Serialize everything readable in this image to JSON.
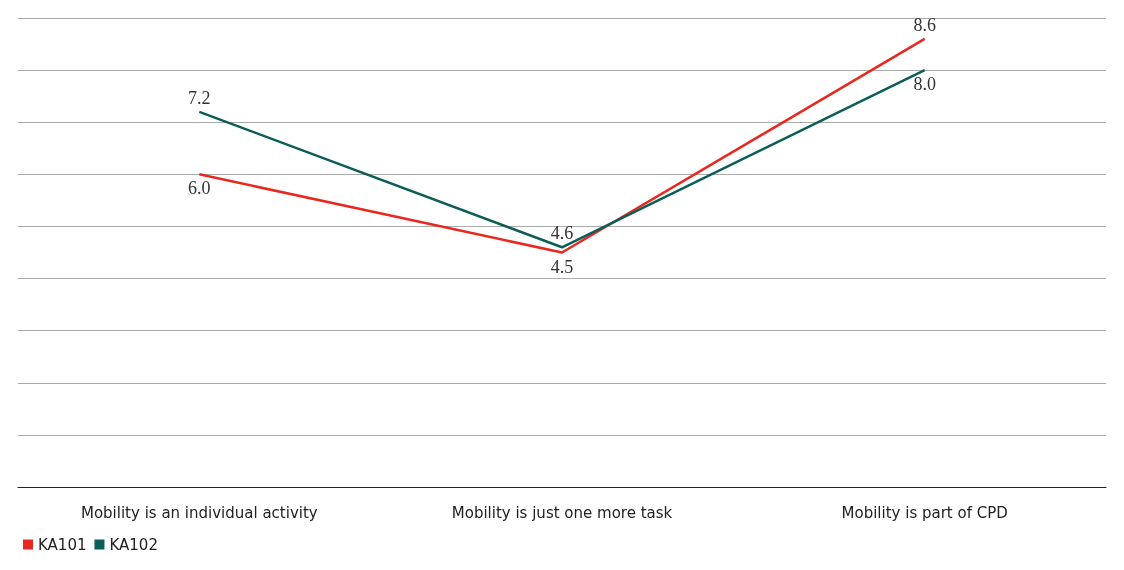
{
  "chart_data": {
    "type": "line",
    "categories": [
      "Mobility is an individual activity",
      "Mobility is just one more task",
      "Mobility is part of CPD"
    ],
    "series": [
      {
        "name": "KA101",
        "color": "#e8281e",
        "values": [
          6.0,
          4.5,
          8.6
        ],
        "value_labels": [
          "6.0",
          "4.5",
          "8.6"
        ]
      },
      {
        "name": "KA102",
        "color": "#0b5e57",
        "values": [
          7.2,
          4.6,
          8.0
        ],
        "value_labels": [
          "7.2",
          "4.6",
          "8.0"
        ]
      }
    ],
    "grid": "y",
    "legend": "bottom left",
    "marker": "none",
    "line_style": "solid"
  }
}
